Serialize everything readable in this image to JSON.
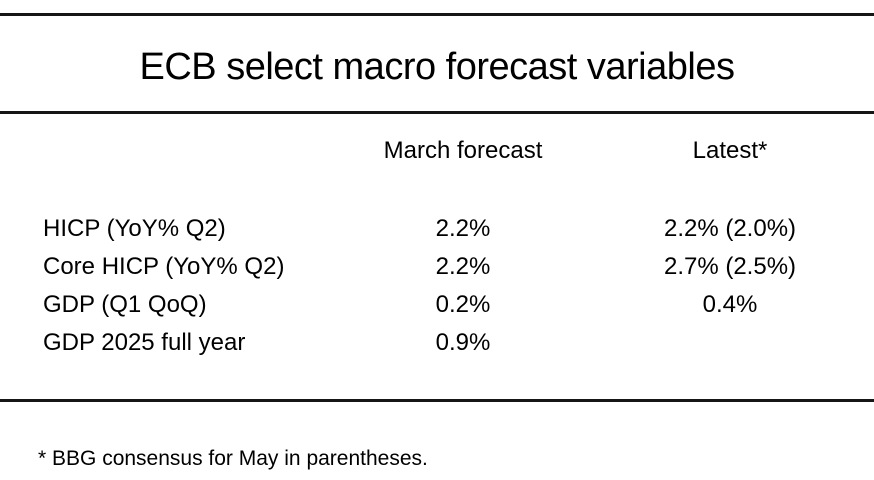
{
  "chart_data": {
    "type": "table",
    "title": "ECB select macro forecast variables",
    "columns": [
      "",
      "March forecast",
      "Latest*"
    ],
    "rows": [
      [
        "HICP (YoY% Q2)",
        "2.2%",
        "2.2% (2.0%)"
      ],
      [
        "Core HICP (YoY% Q2)",
        "2.2%",
        "2.7% (2.5%)"
      ],
      [
        "GDP (Q1 QoQ)",
        "0.2%",
        "0.4%"
      ],
      [
        "GDP 2025 full year",
        "0.9%",
        ""
      ]
    ],
    "footnote": "* BBG consensus for May in parentheses.",
    "layout_hints": {
      "horizontal_rules": 3,
      "vertical_rules": 0,
      "value_alignment": "center"
    }
  },
  "colors": {
    "background": "#ffffff",
    "text": "#000000",
    "rule": "#161616"
  }
}
